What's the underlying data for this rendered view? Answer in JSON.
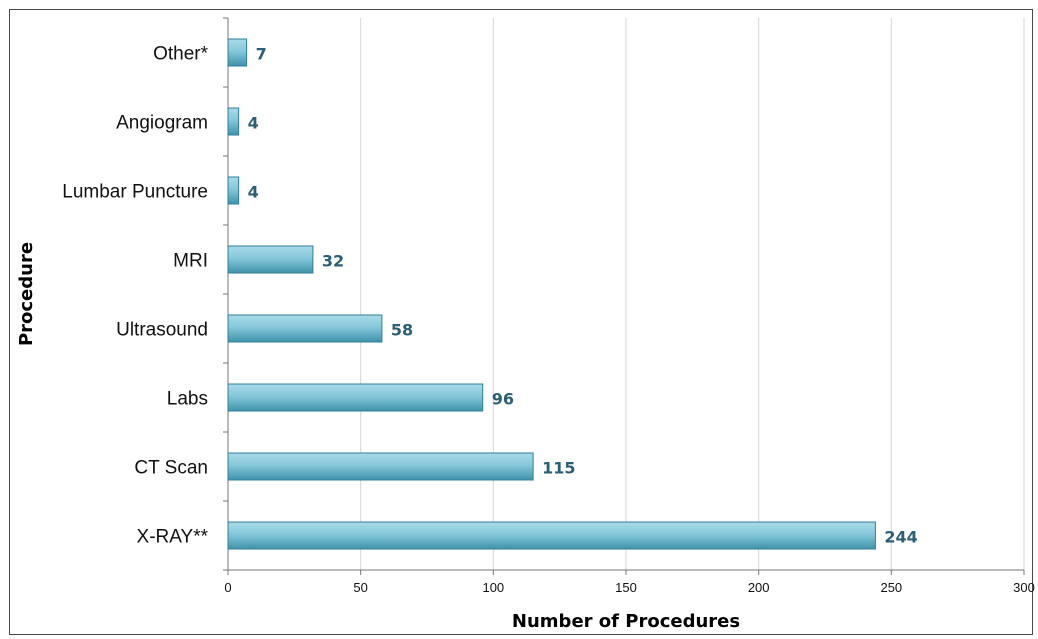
{
  "chart_data": {
    "type": "bar",
    "orientation": "horizontal",
    "categories": [
      "Other*",
      "Angiogram",
      "Lumbar Puncture",
      "MRI",
      "Ultrasound",
      "Labs",
      "CT Scan",
      "X-RAY**"
    ],
    "values": [
      7,
      4,
      4,
      32,
      58,
      96,
      115,
      244
    ],
    "title": "",
    "xlabel": "Number of Procedures",
    "ylabel": "Procedure",
    "xlim": [
      0,
      300
    ],
    "xticks": [
      0,
      50,
      100,
      150,
      200,
      250,
      300
    ],
    "grid": "vertical",
    "legend": "none",
    "colors": {
      "bar_fill": "#7ec3d6",
      "bar_edge": "#2f7f98",
      "value_label": "#2c5f74"
    }
  }
}
